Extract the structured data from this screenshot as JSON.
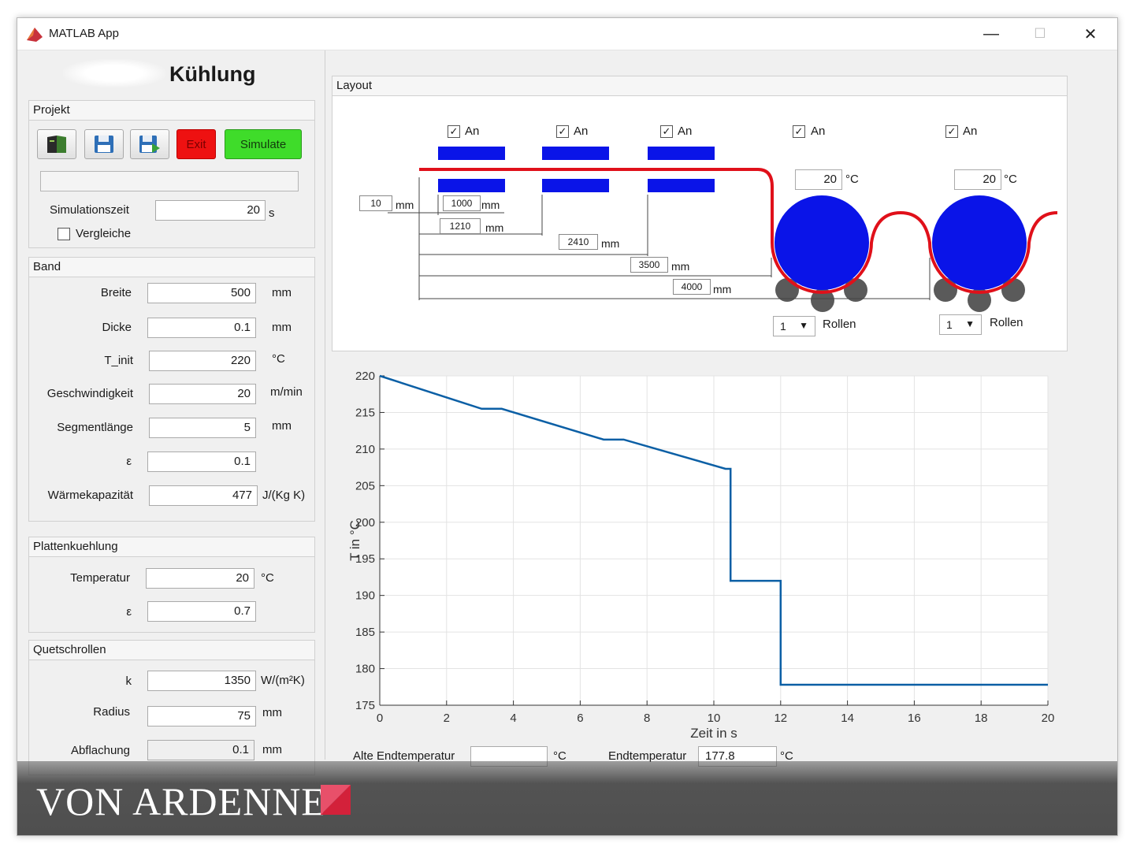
{
  "window": {
    "title": "MATLAB App",
    "minimize": "—",
    "maximize": "☐",
    "close": "✕"
  },
  "app": {
    "heading": "Kühlung"
  },
  "projekt": {
    "title": "Projekt",
    "exit_label": "Exit",
    "simulate_label": "Simulate",
    "simzeit_label": "Simulationszeit",
    "simzeit_value": "20",
    "simzeit_unit": "s",
    "vergleiche_label": "Vergleiche",
    "vergleiche_checked": false
  },
  "band": {
    "title": "Band",
    "rows": [
      {
        "label": "Breite",
        "value": "500",
        "unit": "mm"
      },
      {
        "label": "Dicke",
        "value": "0.1",
        "unit": "mm"
      },
      {
        "label": "T_init",
        "value": "220",
        "unit": "°C"
      },
      {
        "label": "Geschwindigkeit",
        "value": "20",
        "unit": "m/min"
      },
      {
        "label": "Segmentlänge",
        "value": "5",
        "unit": "mm"
      },
      {
        "label": "ε",
        "value": "0.1",
        "unit": ""
      },
      {
        "label": "Wärmekapazität",
        "value": "477",
        "unit": "J/(Kg K)"
      }
    ]
  },
  "platten": {
    "title": "Plattenkuehlung",
    "rows": [
      {
        "label": "Temperatur",
        "value": "20",
        "unit": "°C"
      },
      {
        "label": "ε",
        "value": "0.7",
        "unit": ""
      }
    ]
  },
  "quetsch": {
    "title": "Quetschrollen",
    "rows": [
      {
        "label": "k",
        "value": "1350",
        "unit": "W/(m²K)"
      },
      {
        "label": "Radius",
        "value": "75",
        "unit": "mm"
      },
      {
        "label": "Abflachung",
        "value": "0.1",
        "unit": "mm"
      }
    ]
  },
  "layout": {
    "title": "Layout",
    "checkbox_label": "An",
    "dims": [
      {
        "value": "10",
        "unit": "mm"
      },
      {
        "value": "1000",
        "unit": "mm"
      },
      {
        "value": "1210",
        "unit": "mm"
      },
      {
        "value": "2410",
        "unit": "mm"
      },
      {
        "value": "3500",
        "unit": "mm"
      },
      {
        "value": "4000",
        "unit": "mm"
      }
    ],
    "roller_temps": [
      {
        "value": "20",
        "unit": "°C"
      },
      {
        "value": "20",
        "unit": "°C"
      }
    ],
    "roller_counts": [
      {
        "value": "1",
        "label": "Rollen"
      },
      {
        "value": "1",
        "label": "Rollen"
      }
    ],
    "colors": {
      "strip": "#e0101a",
      "cooler": "#0a14e8",
      "roller": "#0a14e8",
      "support": "#5a5a5a"
    }
  },
  "results": {
    "alte_label": "Alte Endtemperatur",
    "alte_value": "",
    "alte_unit": "°C",
    "end_label": "Endtemperatur",
    "end_value": "177.8",
    "end_unit": "°C"
  },
  "branding": {
    "company": "VON ARDENNE"
  },
  "chart_data": {
    "type": "line",
    "xlabel": "Zeit in s",
    "ylabel": "T in °C",
    "xlim": [
      0,
      20
    ],
    "ylim": [
      175,
      220
    ],
    "xticks": [
      0,
      2,
      4,
      6,
      8,
      10,
      12,
      14,
      16,
      18,
      20
    ],
    "yticks": [
      175,
      180,
      185,
      190,
      195,
      200,
      205,
      210,
      215,
      220
    ],
    "grid": true,
    "series": [
      {
        "color": "#0b5fa5",
        "x": [
          0,
          3.05,
          3.65,
          6.7,
          7.3,
          10.35,
          10.5,
          10.5,
          12.0,
          12.0,
          20
        ],
        "y": [
          220,
          215.5,
          215.5,
          211.3,
          211.3,
          207.3,
          207.3,
          192.0,
          192.0,
          177.8,
          177.8
        ]
      }
    ]
  }
}
